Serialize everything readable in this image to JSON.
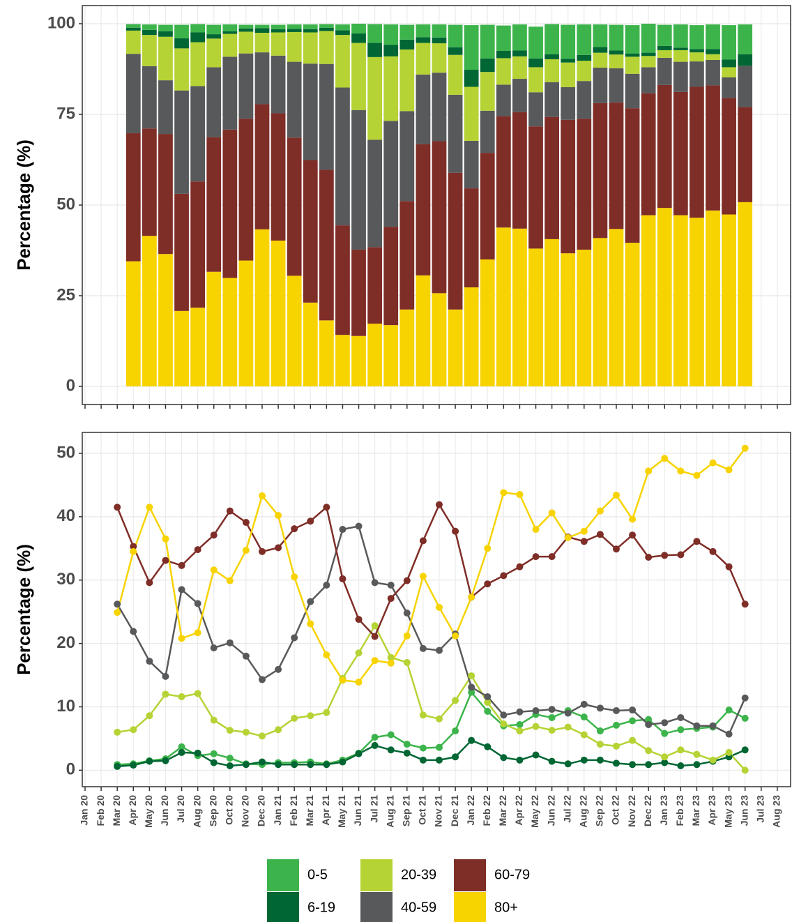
{
  "chart_data": [
    {
      "type": "stacked-bar",
      "ylabel": "Percentage (%)",
      "categories": [
        null,
        null,
        null,
        null,
        null,
        null,
        null,
        null,
        null,
        null,
        null,
        null,
        null,
        null,
        null,
        null,
        null,
        null,
        null,
        null,
        null,
        null,
        null,
        null,
        null,
        null,
        null,
        null,
        null,
        null,
        null,
        null,
        null,
        null,
        null,
        null,
        null,
        null,
        null,
        null,
        null,
        null,
        null,
        null
      ],
      "ylim": [
        -5,
        105
      ],
      "yticks": [
        0,
        25,
        50,
        75,
        100
      ],
      "grid": true,
      "series": [
        {
          "color": "#3cb44b",
          "values": [
            null,
            null,
            null,
            1.0,
            1.5,
            1.8,
            3.7,
            2.3,
            2.6,
            1.9,
            1.0,
            0.9,
            1.2,
            1.2,
            1.3,
            1.0,
            1.6,
            2.7,
            5.2,
            5.6,
            4.1,
            3.5,
            3.6,
            6.2,
            12.3,
            9.3,
            7.0,
            7.2,
            8.8,
            8.3,
            9.4,
            8.4,
            6.2,
            7.1,
            7.8,
            8.0,
            5.8,
            6.4,
            6.6,
            6.8,
            9.5,
            8.2,
            null,
            null
          ]
        },
        {
          "color": "#006633",
          "values": [
            null,
            null,
            null,
            0.8,
            1.4,
            1.5,
            2.8,
            2.7,
            1.2,
            0.7,
            0.9,
            1.3,
            0.9,
            0.9,
            0.9,
            0.9,
            1.3,
            2.6,
            3.9,
            3.2,
            2.7,
            1.6,
            1.6,
            2.1,
            4.7,
            3.7,
            2.0,
            1.6,
            2.4,
            1.4,
            1.0,
            1.6,
            1.6,
            1.1,
            0.9,
            0.9,
            1.2,
            0.7,
            0.9,
            1.4,
            2.1,
            3.2,
            null,
            null
          ]
        },
        {
          "color": "#b5d334",
          "values": [
            null,
            null,
            null,
            6.4,
            8.6,
            12.0,
            11.6,
            12.1,
            7.9,
            6.3,
            6.0,
            5.4,
            6.4,
            8.2,
            8.6,
            9.1,
            14.5,
            18.5,
            22.8,
            17.8,
            17.0,
            8.7,
            8.1,
            11.0,
            14.9,
            10.7,
            7.3,
            6.2,
            6.9,
            6.3,
            6.8,
            5.6,
            4.1,
            3.8,
            4.7,
            3.1,
            2.1,
            3.2,
            2.5,
            1.6,
            2.8,
            0.0,
            null,
            null
          ]
        },
        {
          "color": "#58595b",
          "values": [
            null,
            null,
            null,
            21.9,
            17.2,
            14.8,
            28.5,
            26.3,
            19.3,
            20.1,
            18.0,
            14.3,
            15.9,
            20.9,
            26.6,
            29.2,
            38.0,
            38.5,
            29.6,
            29.2,
            24.8,
            19.2,
            18.9,
            21.5,
            13.1,
            11.6,
            8.7,
            9.2,
            9.4,
            9.6,
            9.0,
            10.4,
            9.8,
            9.4,
            9.5,
            7.2,
            7.5,
            8.3,
            7.0,
            7.0,
            5.7,
            11.4,
            null,
            null
          ]
        },
        {
          "color": "#7f2d27",
          "values": [
            null,
            null,
            null,
            35.3,
            29.6,
            33.1,
            32.3,
            34.8,
            37.1,
            40.9,
            39.1,
            34.5,
            35.1,
            38.1,
            39.3,
            41.5,
            30.2,
            23.8,
            21.1,
            27.1,
            29.9,
            36.2,
            41.9,
            37.7,
            27.3,
            29.4,
            30.7,
            32.1,
            33.7,
            33.7,
            36.8,
            36.1,
            37.2,
            34.9,
            37.1,
            33.6,
            33.9,
            34.0,
            36.1,
            34.5,
            32.1,
            26.2,
            null,
            null
          ]
        },
        {
          "color": "#f7d300",
          "values": [
            null,
            null,
            null,
            34.5,
            41.5,
            36.5,
            20.8,
            21.7,
            31.6,
            29.9,
            34.7,
            43.3,
            40.2,
            30.5,
            23.1,
            18.2,
            14.2,
            13.9,
            17.3,
            16.9,
            21.2,
            30.6,
            25.7,
            21.2,
            27.3,
            35.0,
            43.8,
            43.5,
            38.0,
            40.6,
            36.7,
            37.7,
            40.9,
            43.4,
            39.6,
            47.2,
            49.2,
            47.2,
            46.5,
            48.5,
            47.4,
            50.8,
            null,
            null
          ]
        }
      ]
    },
    {
      "type": "line",
      "ylabel": "Percentage (%)",
      "categories": [
        "Jan 20",
        "Feb 20",
        "Mar 20",
        "Apr 20",
        "May 20",
        "Jun 20",
        "Jul 20",
        "Aug 20",
        "Sep 20",
        "Oct 20",
        "Nov 20",
        "Dec 20",
        "Jan 21",
        "Feb 21",
        "Mar 21",
        "Apr 21",
        "May 21",
        "Jun 21",
        "Jul 21",
        "Aug 21",
        "Sep 21",
        "Oct 21",
        "Nov 21",
        "Dec 21",
        "Jan 22",
        "Feb 22",
        "Mar 22",
        "Apr 22",
        "May 22",
        "Jun 22",
        "Jul 22",
        "Aug 22",
        "Sep 22",
        "Oct 22",
        "Nov 22",
        "Dec 22",
        "Jan 23",
        "Feb 23",
        "Mar 23",
        "Apr 23",
        "May 23",
        "Jun 23",
        "Jul 23",
        "Aug 23"
      ],
      "ylim": [
        -2.6,
        53.3
      ],
      "yticks": [
        0,
        10,
        20,
        30,
        40,
        50
      ],
      "grid": true,
      "series": [
        {
          "name": "0-5",
          "color": "#3cb44b",
          "values": [
            null,
            null,
            0.9,
            1.0,
            1.5,
            1.8,
            3.7,
            2.3,
            2.6,
            1.9,
            1.0,
            0.9,
            1.2,
            1.2,
            1.3,
            1.0,
            1.6,
            2.7,
            5.2,
            5.6,
            4.1,
            3.5,
            3.6,
            6.2,
            12.3,
            9.3,
            7.0,
            7.2,
            8.8,
            8.3,
            9.4,
            8.4,
            6.2,
            7.1,
            7.8,
            8.0,
            5.8,
            6.4,
            6.6,
            6.8,
            9.5,
            8.2,
            null,
            null
          ]
        },
        {
          "name": "6-19",
          "color": "#006633",
          "values": [
            null,
            null,
            0.6,
            0.8,
            1.4,
            1.5,
            2.8,
            2.7,
            1.2,
            0.7,
            0.9,
            1.3,
            0.9,
            0.9,
            0.9,
            0.9,
            1.3,
            2.6,
            3.9,
            3.2,
            2.7,
            1.6,
            1.6,
            2.1,
            4.7,
            3.7,
            2.0,
            1.6,
            2.4,
            1.4,
            1.0,
            1.6,
            1.6,
            1.1,
            0.9,
            0.9,
            1.2,
            0.7,
            0.9,
            1.4,
            2.1,
            3.2,
            null,
            null
          ]
        },
        {
          "name": "20-39",
          "color": "#b5d334",
          "values": [
            null,
            null,
            6.0,
            6.4,
            8.6,
            12.0,
            11.6,
            12.1,
            7.9,
            6.3,
            6.0,
            5.4,
            6.4,
            8.2,
            8.6,
            9.1,
            14.5,
            18.5,
            22.8,
            17.8,
            17.0,
            8.7,
            8.1,
            11.0,
            14.9,
            10.7,
            7.3,
            6.2,
            6.9,
            6.3,
            6.8,
            5.6,
            4.1,
            3.8,
            4.7,
            3.1,
            2.1,
            3.2,
            2.5,
            1.6,
            2.8,
            0.0,
            null,
            null
          ]
        },
        {
          "name": "40-59",
          "color": "#58595b",
          "values": [
            null,
            null,
            26.2,
            21.9,
            17.2,
            14.8,
            28.5,
            26.3,
            19.3,
            20.1,
            18.0,
            14.3,
            15.9,
            20.9,
            26.6,
            29.2,
            38.0,
            38.5,
            29.6,
            29.2,
            24.8,
            19.2,
            18.9,
            21.5,
            13.1,
            11.6,
            8.7,
            9.2,
            9.4,
            9.6,
            9.0,
            10.4,
            9.8,
            9.4,
            9.5,
            7.2,
            7.5,
            8.3,
            7.0,
            7.0,
            5.7,
            11.4,
            null,
            null
          ]
        },
        {
          "name": "60-79",
          "color": "#7f2d27",
          "values": [
            null,
            null,
            41.5,
            35.3,
            29.6,
            33.1,
            32.3,
            34.8,
            37.1,
            40.9,
            39.1,
            34.5,
            35.1,
            38.1,
            39.3,
            41.5,
            30.2,
            23.8,
            21.1,
            27.1,
            29.9,
            36.2,
            41.9,
            37.7,
            27.3,
            29.4,
            30.7,
            32.1,
            33.7,
            33.7,
            36.8,
            36.1,
            37.2,
            34.9,
            37.1,
            33.6,
            33.9,
            34.0,
            36.1,
            34.5,
            32.1,
            26.2,
            null,
            null
          ]
        },
        {
          "name": "80+",
          "color": "#f7d300",
          "values": [
            null,
            null,
            24.9,
            34.5,
            41.5,
            36.5,
            20.8,
            21.7,
            31.6,
            29.9,
            34.7,
            43.3,
            40.2,
            30.5,
            23.1,
            18.2,
            14.2,
            13.9,
            17.3,
            16.9,
            21.2,
            30.6,
            25.7,
            21.2,
            27.3,
            35.0,
            43.8,
            43.5,
            38.0,
            40.6,
            36.7,
            37.7,
            40.9,
            43.4,
            39.6,
            47.2,
            49.2,
            47.2,
            46.5,
            48.5,
            47.4,
            50.8,
            null,
            null
          ]
        }
      ]
    }
  ]
}
